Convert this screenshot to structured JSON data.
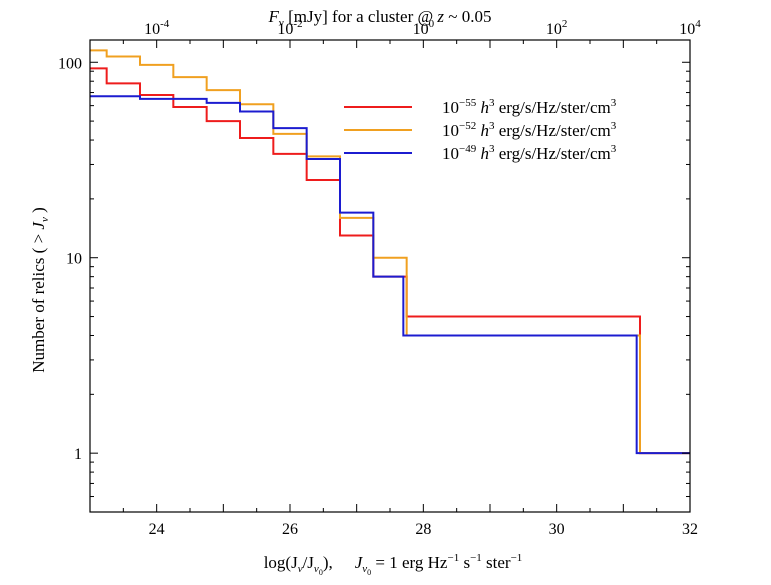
{
  "chart_data": {
    "type": "line",
    "drawstyle": "steps",
    "title": "",
    "xlabel": "log(J_ν/J_ν0),    J_ν0 = 1 erg Hz⁻¹ s⁻¹ ster⁻¹",
    "xlabel_parts": {
      "main": "log(J",
      "sub_nu": "ν",
      "slash": "/J",
      "sub_nu0": "ν",
      "sub_0": "0",
      "close": "),",
      "def_j": "J",
      "def_sub": "ν",
      "def_sub0": "0",
      "def_rest": " = 1 erg Hz",
      "exp1": "−1",
      "s": " s",
      "exp2": "−1",
      "ster": " ster",
      "exp3": "−1"
    },
    "ylabel": "Number of relics ( > J_ν )",
    "ylabel_parts": {
      "main": "Number of relics ( > ",
      "j": "J",
      "nu": "ν",
      "close": " )"
    },
    "top_xlabel_parts": {
      "f": "F",
      "nu": "ν",
      "rest": " [mJy] for a cluster @ ",
      "z": "z",
      "tail": " ~ 0.05"
    },
    "xlim": [
      23,
      32
    ],
    "ylim": [
      0.5,
      130
    ],
    "yscale": "log",
    "x_ticks": [
      24,
      26,
      28,
      30,
      32
    ],
    "x_tick_labels": [
      "24",
      "26",
      "28",
      "30",
      "32"
    ],
    "y_ticks": [
      1,
      10,
      100
    ],
    "y_tick_labels": [
      "1",
      "10",
      "100"
    ],
    "top_axis": {
      "label": "F_ν [mJy] for a cluster @ z ~ 0.05",
      "ticks_at_bottom_x": [
        24,
        26,
        28,
        30,
        32
      ],
      "tick_bases": [
        "10",
        "10",
        "10",
        "10",
        "10"
      ],
      "tick_exponents": [
        "-4",
        "-2",
        "0",
        "2",
        "4"
      ]
    },
    "legend": {
      "position": "top-right",
      "entries": [
        {
          "base": "10",
          "exp": "−55",
          "h": "h",
          "h_exp": "3",
          "unit": " erg/s/Hz/ster/cm",
          "unit_exp": "3"
        },
        {
          "base": "10",
          "exp": "−52",
          "h": "h",
          "h_exp": "3",
          "unit": " erg/s/Hz/ster/cm",
          "unit_exp": "3"
        },
        {
          "base": "10",
          "exp": "−49",
          "h": "h",
          "h_exp": "3",
          "unit": " erg/s/Hz/ster/cm",
          "unit_exp": "3"
        }
      ]
    },
    "series": [
      {
        "name": "10^-55 h^3 erg/s/Hz/ster/cm^3",
        "color": "#ee1c1c",
        "edges": [
          23.0,
          23.25,
          23.75,
          24.25,
          24.75,
          25.25,
          25.75,
          26.25,
          26.75,
          27.25,
          27.75,
          31.25
        ],
        "values": [
          93,
          78,
          68,
          59,
          50,
          41,
          34,
          25,
          13,
          8,
          5,
          1
        ]
      },
      {
        "name": "10^-52 h^3 erg/s/Hz/ster/cm^3",
        "color": "#f0a020",
        "edges": [
          23.0,
          23.25,
          23.75,
          24.25,
          24.75,
          25.25,
          25.75,
          26.25,
          26.75,
          27.25,
          27.75,
          31.25
        ],
        "values": [
          115,
          107,
          97,
          84,
          72,
          61,
          43,
          33,
          16,
          10,
          4,
          1
        ]
      },
      {
        "name": "10^-49 h^3 erg/s/Hz/ster/cm^3",
        "color": "#1c1cd0",
        "edges": [
          23.0,
          23.75,
          24.75,
          25.25,
          25.75,
          26.25,
          26.75,
          27.25,
          27.7,
          31.2
        ],
        "values": [
          67,
          65,
          62,
          56,
          46,
          32,
          17,
          8,
          4,
          1
        ]
      }
    ]
  }
}
